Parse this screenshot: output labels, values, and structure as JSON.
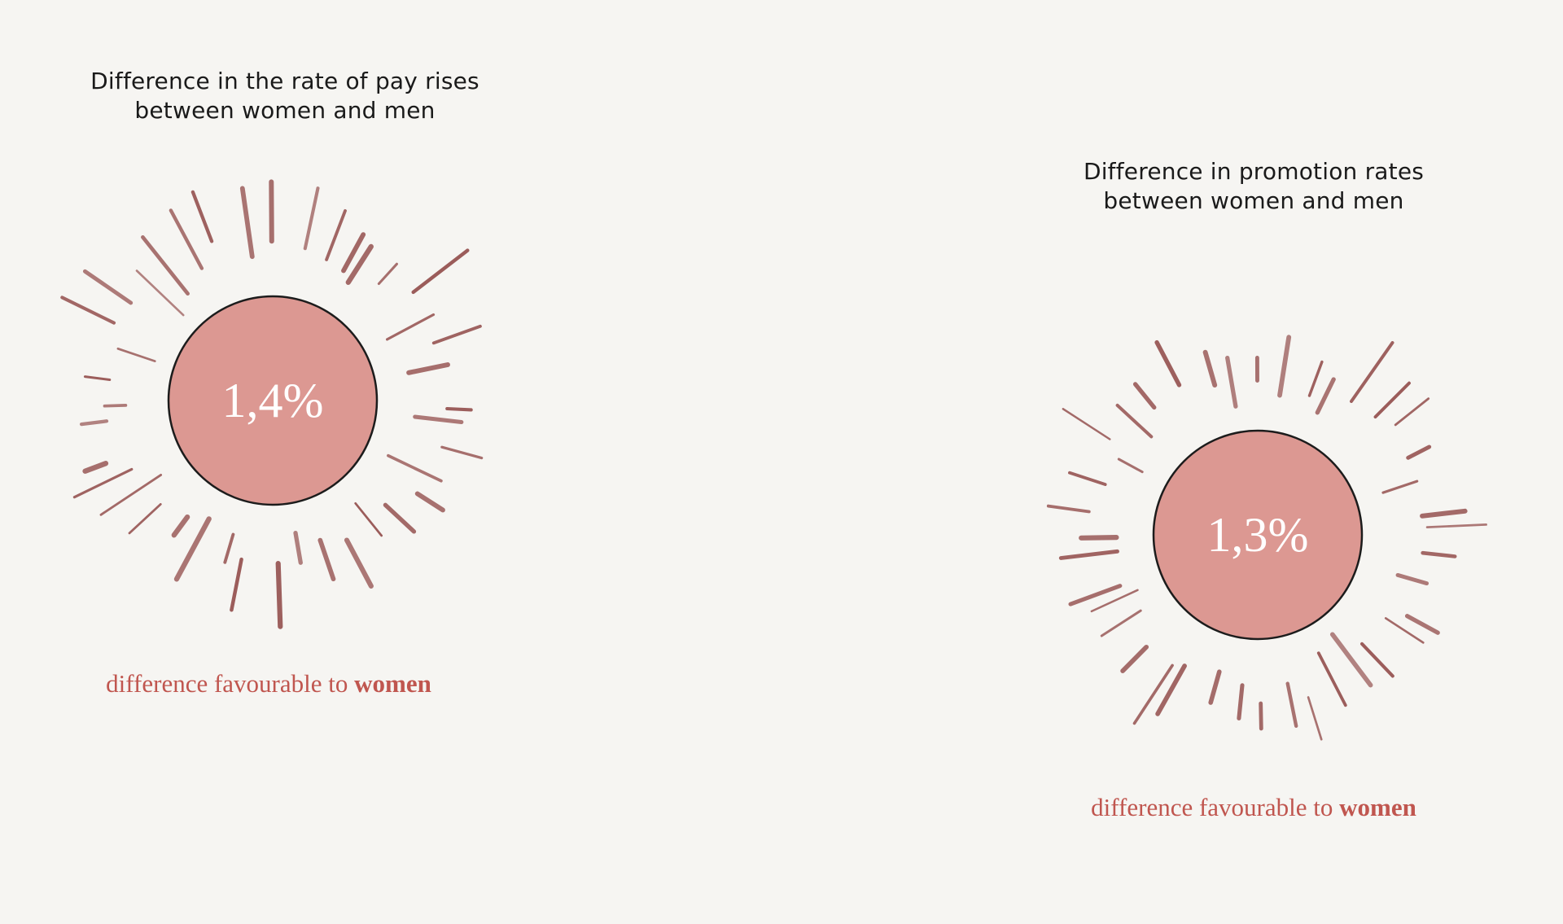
{
  "cards": [
    {
      "title_line1": "Difference in the rate of pay rises",
      "title_line2": "between women and men",
      "value": "1,4%",
      "caption_prefix": "difference favourable to ",
      "caption_emphasis": "women"
    },
    {
      "title_line1": "Difference in promotion rates",
      "title_line2": "between women and men",
      "value": "1,3%",
      "caption_prefix": "difference favourable to ",
      "caption_emphasis": "women"
    }
  ],
  "colors": {
    "background": "#f6f5f2",
    "circle_fill": "#dc9892",
    "circle_stroke": "#1c1c1c",
    "rays": "#9b5c5a",
    "caption": "#c0564f",
    "value_text": "#ffffff"
  }
}
